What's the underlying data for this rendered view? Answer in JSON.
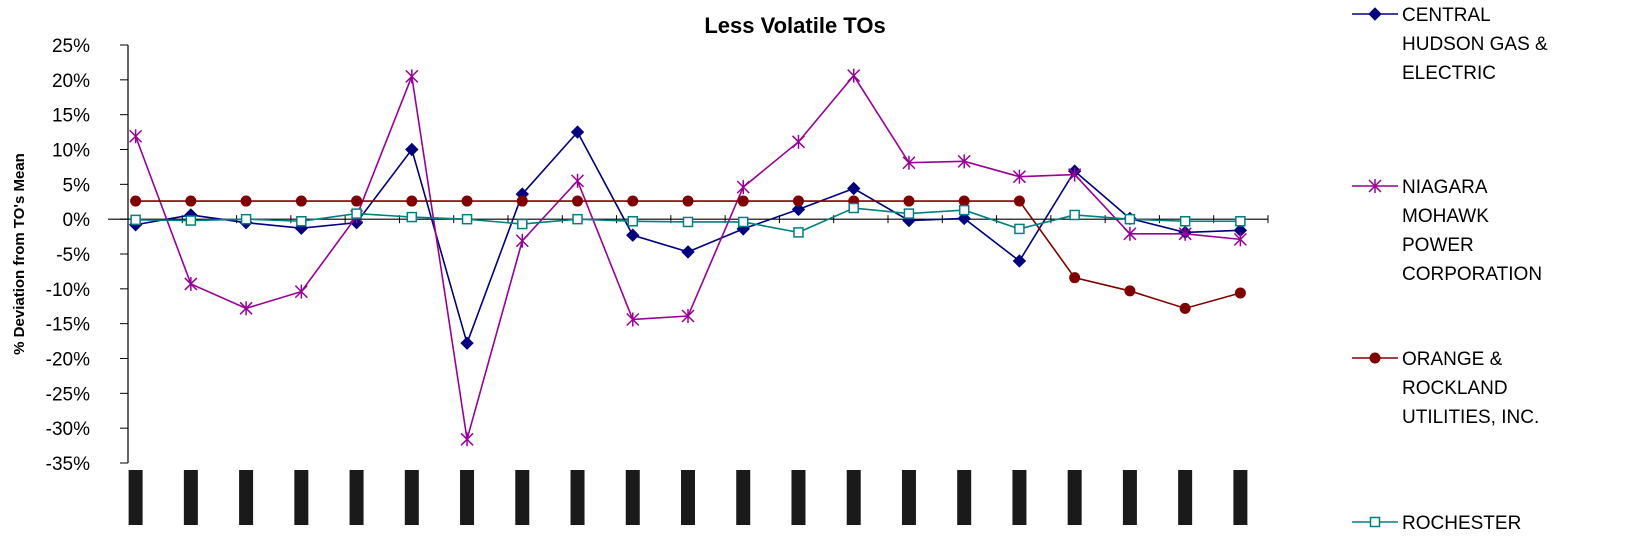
{
  "chart_data": {
    "type": "line",
    "title": "Less Volatile TOs",
    "xlabel": "",
    "ylabel": "% Deviation from TO's Mean",
    "ylim": [
      -35,
      25
    ],
    "y_ticks": [
      "25%",
      "20%",
      "15%",
      "10%",
      "5%",
      "0%",
      "-5%",
      "-10%",
      "-15%",
      "-20%",
      "-25%",
      "-30%",
      "-35%"
    ],
    "x_count": 21,
    "grid": false,
    "legend_position": "right",
    "series": [
      {
        "name": "CENTRAL HUDSON GAS & ELECTRIC",
        "name_lines": [
          "CENTRAL",
          "HUDSON GAS &",
          "ELECTRIC"
        ],
        "color": "#000080",
        "marker": "diamond",
        "values": [
          -0.8,
          0.6,
          -0.5,
          -1.3,
          -0.5,
          10.0,
          -17.8,
          3.6,
          12.5,
          -2.3,
          -4.7,
          -1.4,
          1.4,
          4.4,
          -0.2,
          0.1,
          -6.0,
          6.9,
          0.1,
          -1.9,
          -1.6
        ]
      },
      {
        "name": "NIAGARA MOHAWK POWER CORPORATION",
        "name_lines": [
          "NIAGARA",
          "MOHAWK",
          "POWER",
          "CORPORATION"
        ],
        "color": "#990099",
        "marker": "star",
        "values": [
          11.9,
          -9.3,
          -12.8,
          -10.4,
          0.4,
          20.5,
          -31.6,
          -3.1,
          5.5,
          -14.4,
          -13.9,
          4.6,
          11.1,
          20.6,
          8.1,
          8.3,
          6.1,
          6.4,
          -2.1,
          -2.1,
          -2.9
        ]
      },
      {
        "name": "ORANGE & ROCKLAND UTILITIES, INC.",
        "name_lines": [
          "ORANGE &",
          "ROCKLAND",
          "UTILITIES, INC."
        ],
        "color": "#800000",
        "marker": "circle",
        "values": [
          2.6,
          2.6,
          2.6,
          2.6,
          2.6,
          2.6,
          2.6,
          2.6,
          2.6,
          2.6,
          2.6,
          2.6,
          2.6,
          2.6,
          2.6,
          2.6,
          2.6,
          -8.4,
          -10.3,
          -12.8,
          -10.6
        ]
      },
      {
        "name": "ROCHESTER",
        "name_lines": [
          "ROCHESTER"
        ],
        "color": "#008080",
        "marker": "square",
        "values": [
          -0.1,
          -0.2,
          0.0,
          -0.3,
          0.8,
          0.3,
          0.0,
          -0.7,
          0.0,
          -0.3,
          -0.4,
          -0.4,
          -1.9,
          1.6,
          0.8,
          1.3,
          -1.4,
          0.6,
          0.0,
          -0.3,
          -0.3
        ]
      }
    ]
  }
}
